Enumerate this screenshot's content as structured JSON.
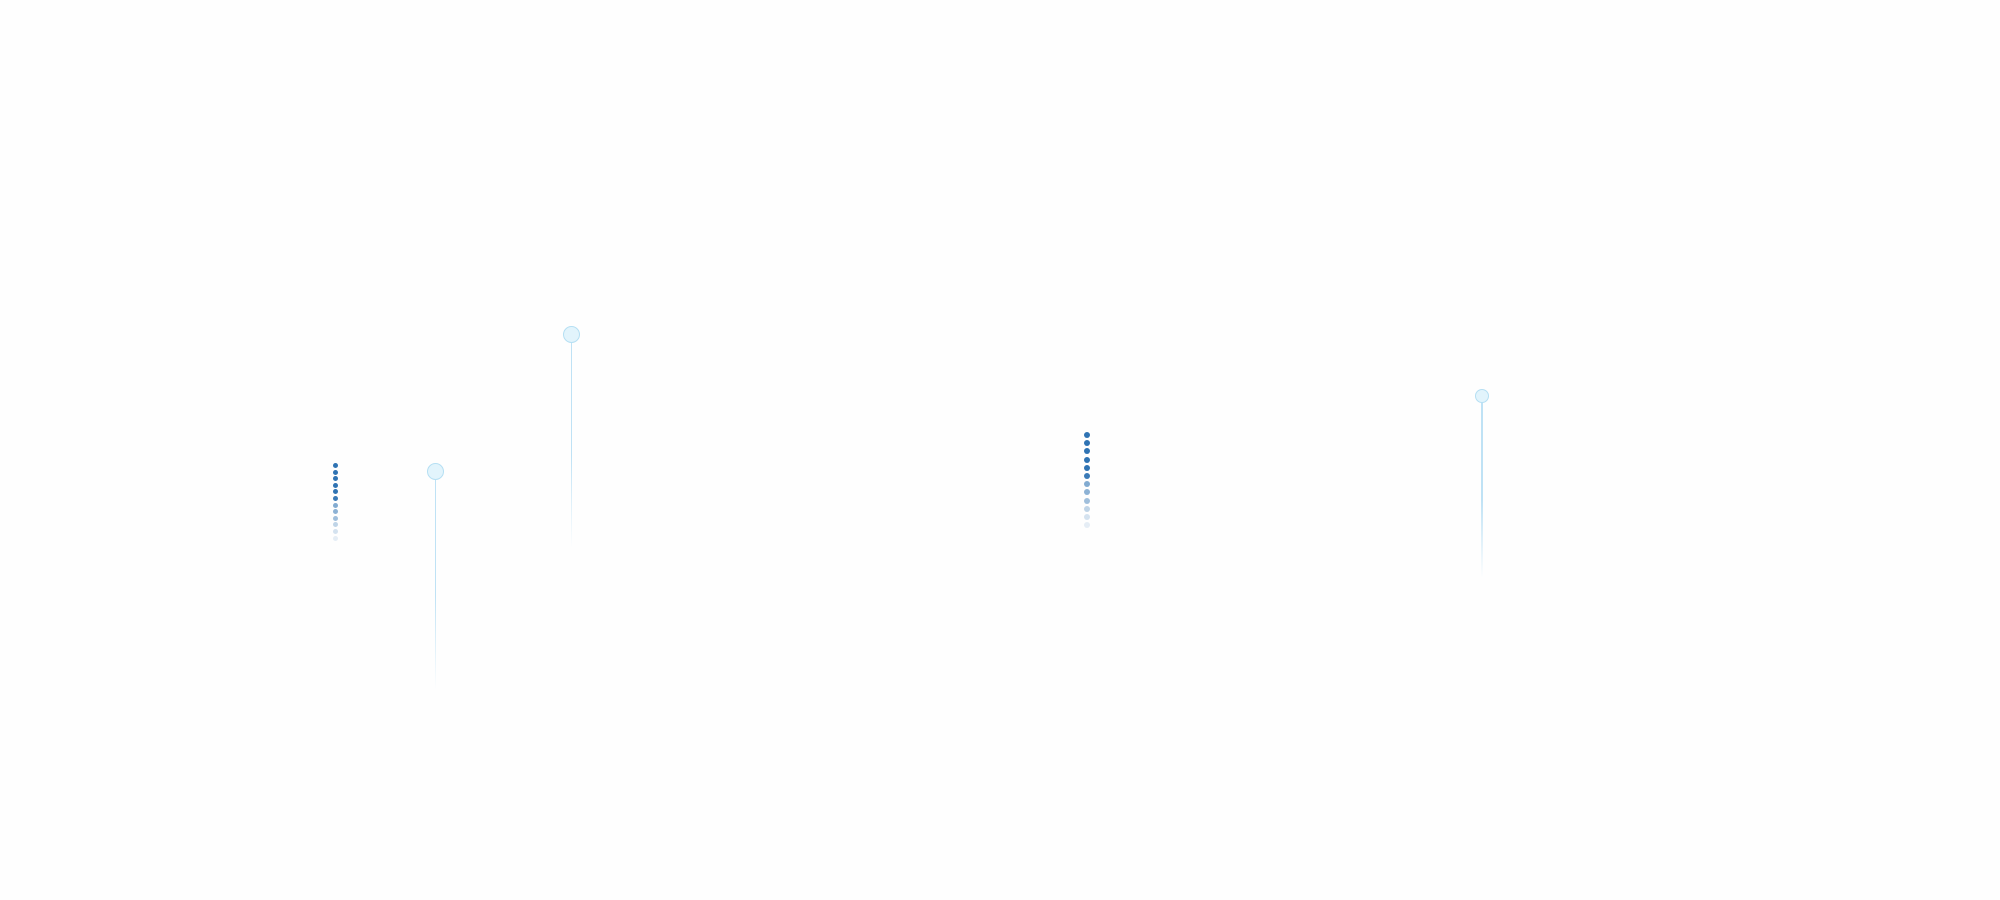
{
  "colors": {
    "background": "#fefefe",
    "dot_dark": "#2f73b3",
    "pin_fill": "#e2f4fc",
    "pin_border": "#b5dff3",
    "pin_line": "#bfe2f5"
  }
}
